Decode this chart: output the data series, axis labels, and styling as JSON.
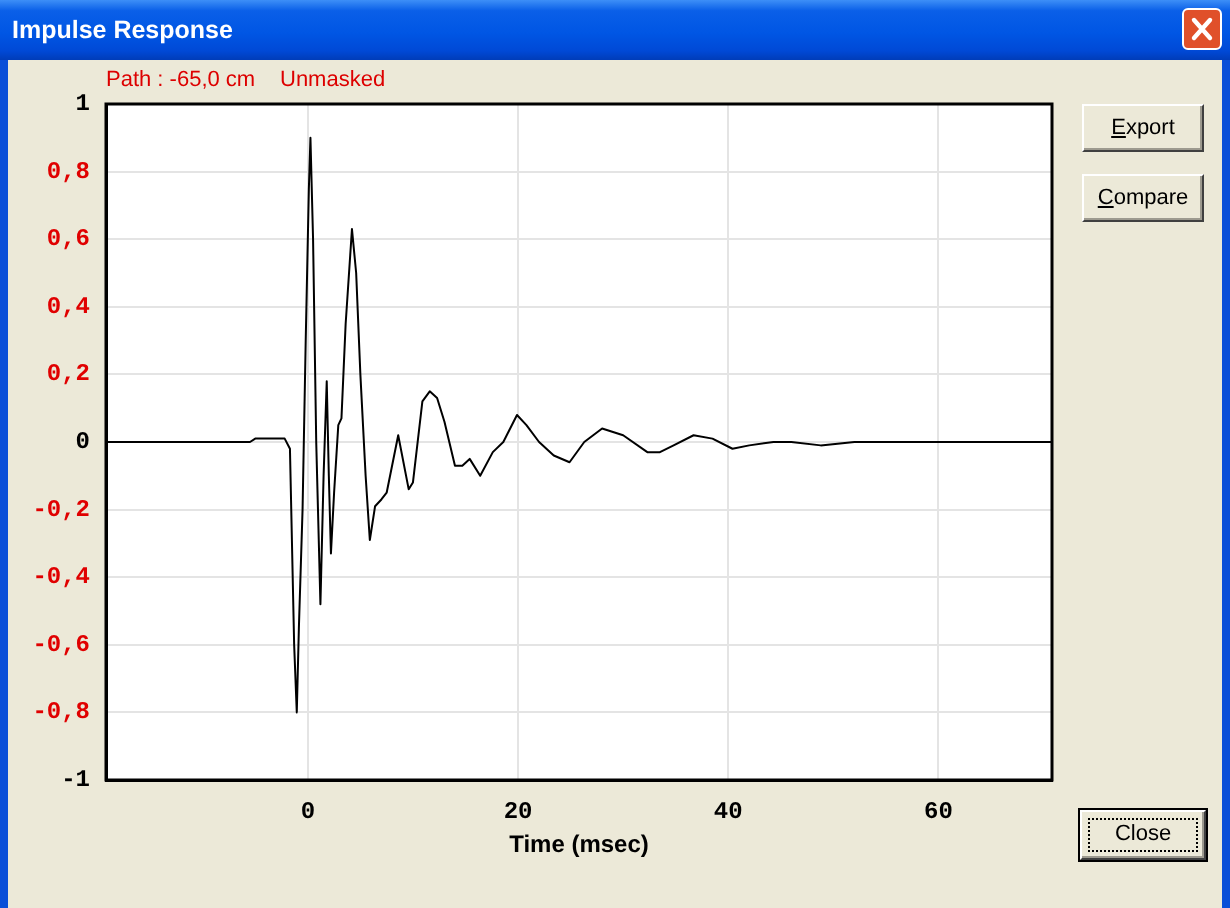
{
  "chart_data": {
    "type": "line",
    "title": "Impulse Response",
    "xlabel": "Time (msec)",
    "annotations": [
      "Path : -65,0 cm",
      "Unmasked",
      "Export",
      "Compare",
      "Close"
    ],
    "x": [
      -19.2,
      -5.5,
      -5.0,
      -4.0,
      -3.0,
      -2.2,
      -1.7,
      -1.3,
      -1.05,
      -0.85,
      -0.5,
      -0.2,
      0.1,
      0.25,
      0.5,
      0.8,
      1.2,
      1.5,
      1.8,
      2.0,
      2.2,
      2.5,
      2.9,
      3.2,
      3.6,
      4.2,
      4.6,
      5.0,
      5.5,
      5.9,
      6.4,
      7.0,
      7.5,
      8.6,
      9.6,
      10.0,
      10.9,
      11.6,
      12.3,
      13.0,
      14.0,
      14.7,
      15.4,
      16.4,
      17.6,
      18.6,
      19.9,
      20.8,
      22.0,
      23.4,
      24.9,
      26.3,
      28.0,
      30.0,
      32.3,
      33.5,
      34.8,
      36.7,
      38.5,
      40.4,
      42.0,
      44.3,
      46.0,
      48.8,
      52.0,
      56.0,
      60.0,
      65.0,
      70.8
    ],
    "values": [
      0,
      0,
      0.01,
      0.01,
      0.01,
      0.01,
      -0.02,
      -0.6,
      -0.8,
      -0.55,
      -0.2,
      0.3,
      0.75,
      0.9,
      0.6,
      0,
      -0.48,
      -0.1,
      0.18,
      -0.1,
      -0.33,
      -0.15,
      0.05,
      0.07,
      0.35,
      0.63,
      0.5,
      0.2,
      -0.1,
      -0.29,
      -0.19,
      -0.17,
      -0.15,
      0.02,
      -0.14,
      -0.12,
      0.12,
      0.15,
      0.13,
      0.06,
      -0.07,
      -0.07,
      -0.05,
      -0.1,
      -0.03,
      0,
      0.08,
      0.05,
      0,
      -0.04,
      -0.06,
      0,
      0.04,
      0.02,
      -0.03,
      -0.03,
      -0.01,
      0.02,
      0.01,
      -0.02,
      -0.01,
      0,
      0,
      -0.01,
      0,
      0,
      0,
      0,
      0
    ],
    "color": "#000000",
    "xlim": [
      -19.2,
      70.8
    ],
    "xticks": [
      0,
      20,
      40,
      60
    ],
    "ylim": [
      -1,
      1
    ],
    "yticks": [
      -1,
      {
        "value": -0.8,
        "label": "-0,8"
      },
      {
        "value": -0.6,
        "label": "-0,6"
      },
      {
        "value": -0.4,
        "label": "-0,4"
      },
      {
        "value": -0.2,
        "label": "-0,2"
      },
      0,
      {
        "value": 0.2,
        "label": "0,2"
      },
      {
        "value": 0.4,
        "label": "0,4"
      },
      {
        "value": 0.6,
        "label": "0,6"
      },
      {
        "value": 0.8,
        "label": "0,8"
      },
      1
    ],
    "grid": true,
    "legend": false,
    "marker": "none",
    "line_style": "solid"
  }
}
